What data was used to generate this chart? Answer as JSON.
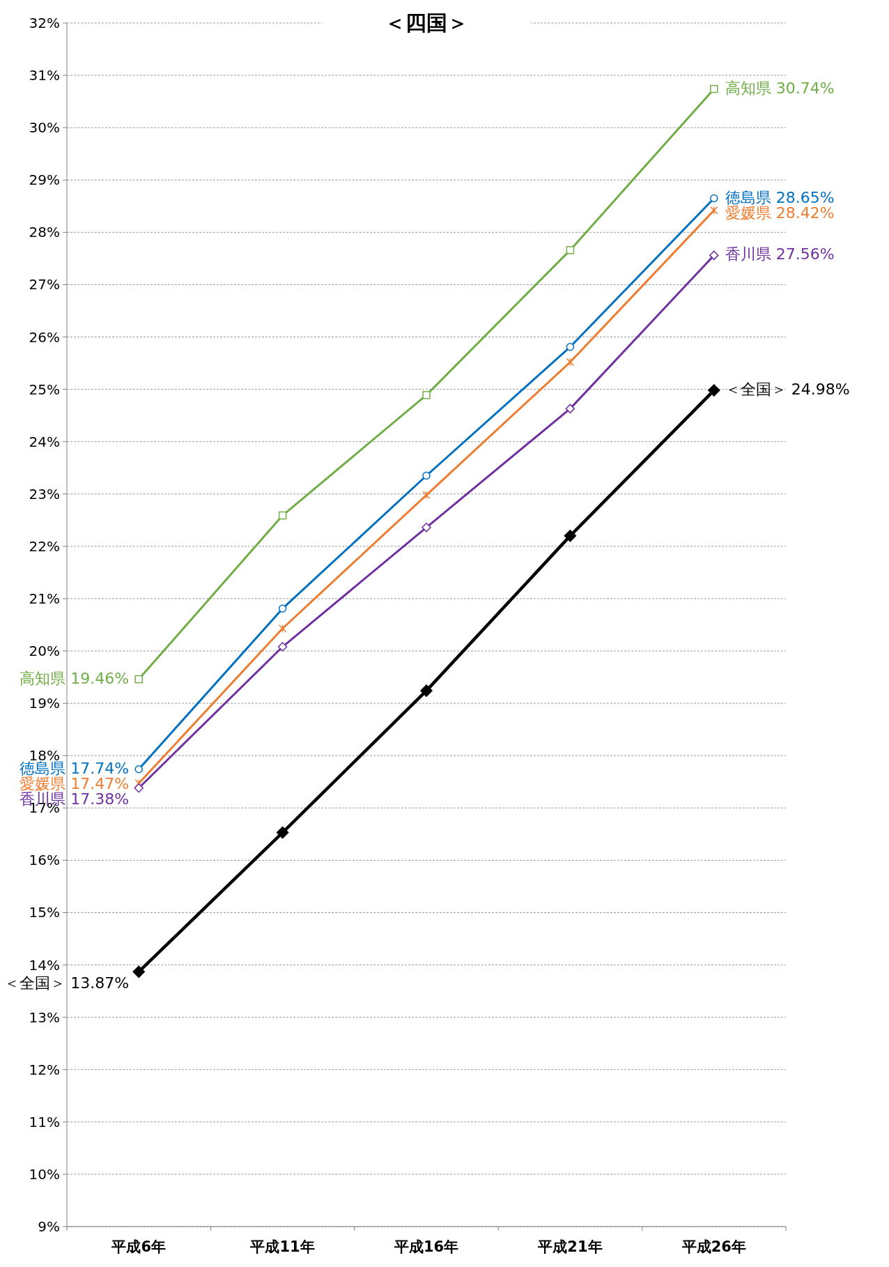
{
  "chart_data": {
    "type": "line",
    "title": "＜四国＞",
    "categories": [
      "平成6年",
      "平成11年",
      "平成16年",
      "平成21年",
      "平成26年"
    ],
    "series": [
      {
        "color": "#70ad47",
        "marker": "square",
        "values": [
          19.46,
          22.59,
          24.89,
          27.66,
          30.74
        ],
        "value_labels": [
          "高知県 19.46%",
          null,
          null,
          null,
          "高知県 30.74%"
        ]
      },
      {
        "color": "#0070c0",
        "marker": "circle",
        "values": [
          17.74,
          20.81,
          23.35,
          25.81,
          28.65
        ],
        "value_labels": [
          "徳島県 17.74%",
          null,
          null,
          null,
          "徳島県 28.65%"
        ]
      },
      {
        "color": "#ed7d31",
        "marker": "cross",
        "values": [
          17.47,
          20.43,
          22.98,
          25.52,
          28.42
        ],
        "value_labels": [
          "愛媛県 17.47%",
          null,
          null,
          null,
          "愛媛県 28.42%"
        ]
      },
      {
        "color": "#7030a0",
        "marker": "diamond",
        "values": [
          17.38,
          20.08,
          22.36,
          24.63,
          27.56
        ],
        "value_labels": [
          "香川県 17.38%",
          null,
          null,
          null,
          "香川県 27.56%"
        ]
      },
      {
        "color": "#000000",
        "marker": "diamond",
        "values": [
          13.87,
          16.53,
          19.24,
          22.2,
          24.98
        ],
        "value_labels": [
          "＜全国＞ 13.87%",
          null,
          null,
          null,
          "＜全国＞ 24.98%"
        ]
      }
    ],
    "ylim": [
      9,
      32
    ],
    "yticks": [
      {
        "value": 9,
        "label": "9%"
      },
      {
        "value": 10,
        "label": "10%"
      },
      {
        "value": 11,
        "label": "11%"
      },
      {
        "value": 12,
        "label": "12%"
      },
      {
        "value": 13,
        "label": "13%"
      },
      {
        "value": 14,
        "label": "14%"
      },
      {
        "value": 15,
        "label": "15%"
      },
      {
        "value": 16,
        "label": "16%"
      },
      {
        "value": 17,
        "label": "17%"
      },
      {
        "value": 18,
        "label": "18%"
      },
      {
        "value": 19,
        "label": "19%"
      },
      {
        "value": 20,
        "label": "20%"
      },
      {
        "value": 21,
        "label": "21%"
      },
      {
        "value": 22,
        "label": "22%"
      },
      {
        "value": 23,
        "label": "23%"
      },
      {
        "value": 24,
        "label": "24%"
      },
      {
        "value": 25,
        "label": "25%"
      },
      {
        "value": 26,
        "label": "26%"
      },
      {
        "value": 27,
        "label": "27%"
      },
      {
        "value": 28,
        "label": "28%"
      },
      {
        "value": 29,
        "label": "29%"
      },
      {
        "value": 30,
        "label": "30%"
      },
      {
        "value": 31,
        "label": "31%"
      },
      {
        "value": 32,
        "label": "32%"
      }
    ],
    "grid": "y",
    "line_style": "solid"
  }
}
